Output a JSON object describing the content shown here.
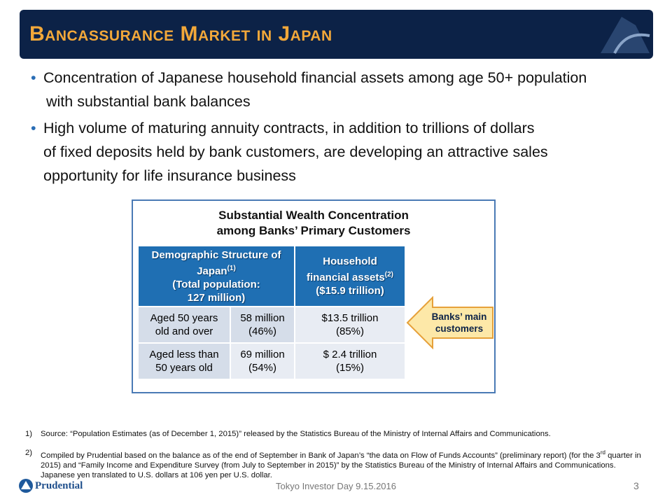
{
  "header": {
    "title": "Bancassurance Market in Japan"
  },
  "bullets": [
    {
      "line1": "Concentration of Japanese household financial assets among age 50+ population",
      "line2": "with substantial bank balances"
    },
    {
      "line1": "High volume of maturing annuity contracts, in addition to trillions of dollars",
      "line2": "of fixed deposits held by bank customers, are developing an attractive sales",
      "line3": "opportunity for life insurance business"
    }
  ],
  "table": {
    "title": "Substantial Wealth Concentration among Banks’ Primary Customers",
    "headers": [
      {
        "text": "Demographic Structure of Japan",
        "sup": "(1)",
        "sub1": "(Total population:",
        "sub2": "127 million)"
      },
      {
        "text": "Household financial assets",
        "sup": "(2)",
        "sub1": "($15.9 trillion)"
      }
    ],
    "rows": [
      {
        "label": "Aged 50 years old and over",
        "population": "58 million",
        "population_share": "(46%)",
        "assets": "$13.5 trillion",
        "assets_share": "(85%)"
      },
      {
        "label": "Aged less than 50 years old",
        "population": "69 million",
        "population_share": "(54%)",
        "assets": "$ 2.4 trillion",
        "assets_share": "(15%)"
      }
    ]
  },
  "callout": "Banks’ main customers",
  "footnotes": [
    {
      "marker": "1)",
      "text": "Source: “Population Estimates (as of December 1, 2015)” released by the Statistics Bureau of the Ministry of Internal Affairs and Communications."
    },
    {
      "marker": "2)",
      "text1": "Compiled by Prudential based on the balance as of the end of September in Bank of Japan’s “the data on Flow of Funds Accounts” (preliminary report) (for the",
      "ordinal": "3",
      "sup": "rd",
      "text2": "quarter in 2015) and “Family Income and Expenditure Survey (from July to September in 2015)” by the Statistics Bureau of the Ministry of Internal Affairs and Communications. Japanese yen translated to U.S. dollars at 106 yen per U.S. dollar."
    }
  ],
  "footer": {
    "company": "Prudential",
    "event": "Tokyo Investor Day 9.15.2016",
    "page": "3"
  }
}
